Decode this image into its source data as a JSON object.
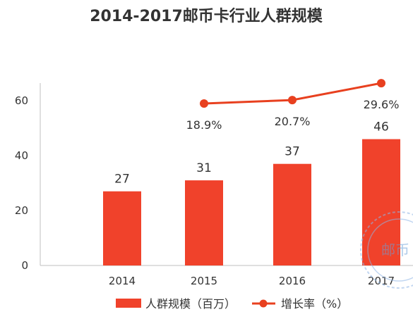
{
  "chart_data": {
    "type": "bar",
    "title": "2014-2017邮币卡行业人群规模",
    "categories": [
      "2014",
      "2015",
      "2016",
      "2017"
    ],
    "series": [
      {
        "name": "人群规模（百万）",
        "type": "bar",
        "values": [
          27,
          31,
          37,
          46
        ],
        "labels": [
          "27",
          "31",
          "37",
          "46"
        ],
        "color": "#f0422b"
      },
      {
        "name": "增长率（%）",
        "type": "line",
        "x": [
          "2015",
          "2016",
          "2017"
        ],
        "values": [
          18.9,
          20.7,
          29.6
        ],
        "labels": [
          "18.9%",
          "20.7%",
          "29.6%"
        ],
        "color": "#e8401f"
      }
    ],
    "ylim": [
      0,
      60
    ],
    "yticks": [
      0,
      20,
      40,
      60
    ],
    "grid": false,
    "legend_position": "bottom"
  },
  "watermark": {
    "text": "邮币",
    "color": "#6a9fd8"
  }
}
